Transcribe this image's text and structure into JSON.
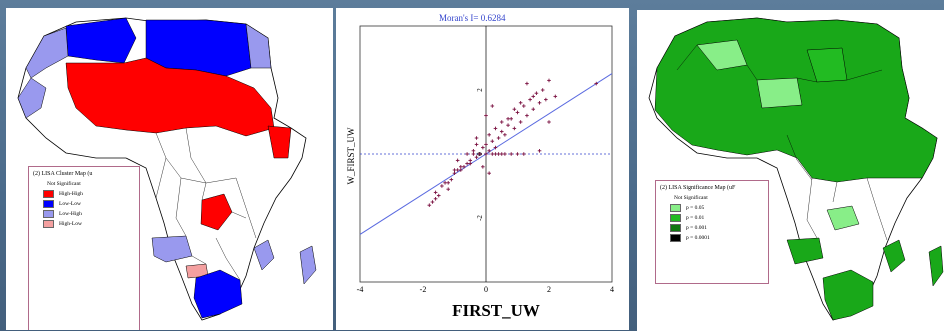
{
  "colors": {
    "high_high": "#ff0000",
    "low_low": "#0000ff",
    "low_high": "#9999ee",
    "high_low": "#f4a0a0",
    "not_significant": "#ffffff",
    "p05": "#88ee88",
    "p01": "#22bb22",
    "p001": "#117711",
    "p0001": "#000000",
    "map_green": "#19a819",
    "point": "#7a1040",
    "fit_line": "#5a6ae0",
    "moran_text": "#3344cc"
  },
  "cluster_map": {
    "legend_title": "(2) LISA Cluster Map (u",
    "items": [
      {
        "label": "Not Significant",
        "color": null
      },
      {
        "label": "High-High",
        "color": "#ff0000"
      },
      {
        "label": "Low-Low",
        "color": "#0000ff"
      },
      {
        "label": "Low-High",
        "color": "#9999ee"
      },
      {
        "label": "High-Low",
        "color": "#f4a0a0"
      }
    ]
  },
  "signif_map": {
    "legend_title": "(2) LISA Significance Map (uF",
    "items": [
      {
        "label": "Not Significant",
        "color": null
      },
      {
        "label": "p = 0.05",
        "color": "#88ee88"
      },
      {
        "label": "p = 0.01",
        "color": "#22bb22"
      },
      {
        "label": "p = 0.001",
        "color": "#117711"
      },
      {
        "label": "p = 0.0001",
        "color": "#000000"
      }
    ]
  },
  "chart_data": {
    "type": "scatter",
    "title": "Moran's I= 0.6284",
    "xlabel": "FIRST_UW",
    "ylabel": "W_FIRST_UW",
    "xlim": [
      -4,
      4
    ],
    "ylim": [
      -4,
      4
    ],
    "x_ticks": [
      -4,
      -2,
      0,
      2,
      4
    ],
    "y_ticks": [
      -2,
      0,
      2
    ],
    "fit_line": {
      "slope": 0.6284,
      "intercept": 0
    },
    "series": [
      {
        "x": [
          -1.8,
          -1.7,
          -1.6,
          -1.5,
          -1.4,
          -1.3,
          -1.2,
          -1.1,
          -1.0,
          -0.9,
          -0.8,
          -0.7,
          -0.6,
          -0.5,
          -0.4,
          -0.3,
          -0.2,
          -0.1,
          0.0,
          0.1,
          0.2,
          0.3,
          0.4,
          0.5,
          0.6,
          0.7,
          0.8,
          0.9,
          1.0,
          1.1,
          1.2,
          1.3,
          1.4,
          1.5,
          1.6,
          1.7,
          1.8,
          1.9,
          2.0,
          2.2,
          -1.6,
          -1.2,
          -0.8,
          -0.5,
          -0.3,
          -0.1,
          0.1,
          0.3,
          0.5,
          0.7,
          0.9,
          1.1,
          1.3,
          1.5,
          0.0,
          0.2,
          0.4,
          -0.2,
          -0.4,
          0.6,
          0.8,
          1.0,
          1.2,
          0.3,
          0.5,
          -0.6,
          -1.0,
          1.7,
          2.0,
          3.5,
          -0.9,
          0.0,
          0.2,
          0.1,
          -0.3
        ],
        "y": [
          -1.6,
          -1.5,
          -1.2,
          -1.3,
          -1.0,
          -0.9,
          -1.1,
          -0.8,
          -0.6,
          -0.5,
          -0.4,
          -0.4,
          -0.3,
          -0.2,
          0.1,
          -0.1,
          0.0,
          0.2,
          0.3,
          0.1,
          0.4,
          0.2,
          0.5,
          0.7,
          0.6,
          0.9,
          1.1,
          0.8,
          1.3,
          1.0,
          1.5,
          1.2,
          1.7,
          1.4,
          1.9,
          1.6,
          2.0,
          1.7,
          2.3,
          1.8,
          -1.4,
          -0.9,
          -0.5,
          -0.3,
          0.3,
          -0.4,
          0.6,
          0.8,
          1.0,
          1.1,
          1.4,
          1.6,
          2.2,
          1.8,
          0.0,
          0.0,
          0.0,
          0.0,
          0.0,
          0.0,
          0.0,
          0.0,
          0.0,
          0.0,
          0.0,
          0.0,
          -0.5,
          0.1,
          1.0,
          2.2,
          -0.2,
          1.2,
          1.5,
          -0.6,
          0.5
        ]
      }
    ]
  }
}
